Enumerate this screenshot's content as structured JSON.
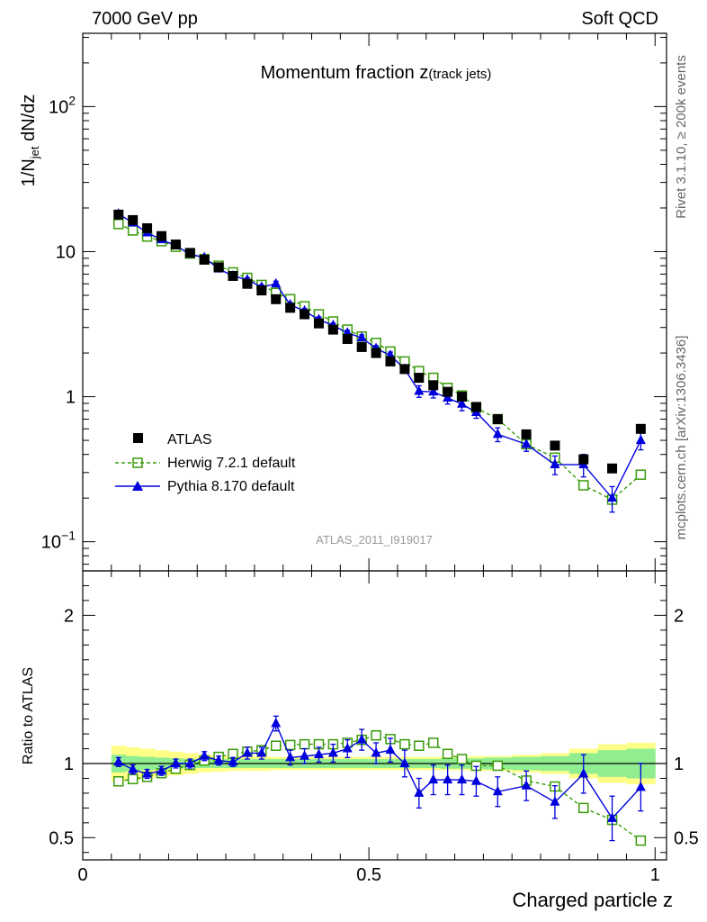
{
  "header": {
    "left": "7000 GeV pp",
    "right": "Soft QCD"
  },
  "side_labels": {
    "rivet": "Rivet 3.1.10, ≥ 200k events",
    "source": "mcplots.cern.ch [arXiv:1306.3436]"
  },
  "chart_data": [
    {
      "type": "scatter",
      "panel": "main",
      "title_main": "Momentum fraction z",
      "title_sub": "(track jets)",
      "ylabel": "1/N_jet dN/dz",
      "xlabel": "",
      "analysis_label": "ATLAS_2011_I919017",
      "yscale": "log",
      "xlim": [
        0,
        1.02
      ],
      "ylim": [
        0.063,
        320
      ],
      "y_ticks": [
        {
          "value": 0.1,
          "base": "10",
          "exp": "−1"
        },
        {
          "value": 1,
          "base": "1",
          "exp": ""
        },
        {
          "value": 10,
          "base": "10",
          "exp": ""
        },
        {
          "value": 100,
          "base": "10",
          "exp": "2"
        }
      ],
      "legend": [
        {
          "key": "atlas",
          "label": "ATLAS"
        },
        {
          "key": "herwig",
          "label": "Herwig 7.2.1 default"
        },
        {
          "key": "pythia",
          "label": "Pythia 8.170 default"
        }
      ],
      "x": [
        0.0625,
        0.0875,
        0.1125,
        0.1375,
        0.1625,
        0.1875,
        0.2125,
        0.2375,
        0.2625,
        0.2875,
        0.3125,
        0.3375,
        0.3625,
        0.3875,
        0.4125,
        0.4375,
        0.4625,
        0.4875,
        0.5125,
        0.5375,
        0.5625,
        0.5875,
        0.6125,
        0.6375,
        0.6625,
        0.6875,
        0.725,
        0.775,
        0.825,
        0.875,
        0.925,
        0.975
      ],
      "series": [
        {
          "key": "atlas",
          "name": "ATLAS",
          "color": "#000000",
          "values": [
            18,
            16.5,
            14.5,
            12.8,
            11.2,
            9.8,
            8.8,
            7.8,
            6.8,
            6.0,
            5.4,
            4.7,
            4.1,
            3.7,
            3.2,
            2.9,
            2.5,
            2.2,
            2.0,
            1.75,
            1.55,
            1.35,
            1.2,
            1.08,
            1.0,
            0.85,
            0.7,
            0.55,
            0.46,
            0.37,
            0.32,
            0.6
          ]
        },
        {
          "key": "herwig",
          "name": "Herwig 7.2.1 default",
          "color": "#3a9b0a",
          "values": [
            15.5,
            14.0,
            12.7,
            11.8,
            10.8,
            9.7,
            8.9,
            8.0,
            7.2,
            6.6,
            5.9,
            5.2,
            4.7,
            4.2,
            3.7,
            3.3,
            2.9,
            2.6,
            2.35,
            2.05,
            1.75,
            1.5,
            1.35,
            1.15,
            1.02,
            0.84,
            0.7,
            0.47,
            0.38,
            0.245,
            0.195,
            0.29
          ]
        },
        {
          "key": "pythia",
          "name": "Pythia 8.170 default",
          "color": "#0000dd",
          "values": [
            18.2,
            15.8,
            13.5,
            12.1,
            11.0,
            9.6,
            9.1,
            7.6,
            6.8,
            6.4,
            5.7,
            6.0,
            4.3,
            3.9,
            3.4,
            3.1,
            2.75,
            2.55,
            2.15,
            1.93,
            1.55,
            1.09,
            1.08,
            0.98,
            0.89,
            0.78,
            0.55,
            0.47,
            0.34,
            0.34,
            0.2,
            0.5
          ],
          "err": [
            0.6,
            0.5,
            0.4,
            0.4,
            0.3,
            0.3,
            0.3,
            0.25,
            0.2,
            0.2,
            0.2,
            0.25,
            0.15,
            0.15,
            0.15,
            0.12,
            0.12,
            0.12,
            0.1,
            0.1,
            0.09,
            0.1,
            0.1,
            0.09,
            0.09,
            0.07,
            0.06,
            0.05,
            0.05,
            0.06,
            0.04,
            0.07
          ]
        }
      ]
    },
    {
      "type": "scatter",
      "panel": "ratio",
      "ylabel": "Ratio to ATLAS",
      "xlabel": "Charged particle z",
      "yscale": "linear",
      "xlim": [
        0,
        1.02
      ],
      "ylim": [
        0.35,
        2.3
      ],
      "y_ticks": [
        0.5,
        1,
        2
      ],
      "x_ticks": [
        {
          "value": 0,
          "label": "0"
        },
        {
          "value": 0.5,
          "label": "0.5"
        },
        {
          "value": 1,
          "label": "1"
        }
      ],
      "reference_line": 1,
      "x": [
        0.0625,
        0.0875,
        0.1125,
        0.1375,
        0.1625,
        0.1875,
        0.2125,
        0.2375,
        0.2625,
        0.2875,
        0.3125,
        0.3375,
        0.3625,
        0.3875,
        0.4125,
        0.4375,
        0.4625,
        0.4875,
        0.5125,
        0.5375,
        0.5625,
        0.5875,
        0.6125,
        0.6375,
        0.6625,
        0.6875,
        0.725,
        0.775,
        0.825,
        0.875,
        0.925,
        0.975
      ],
      "bin_edges": [
        0.05,
        0.075,
        0.1,
        0.125,
        0.15,
        0.175,
        0.2,
        0.225,
        0.25,
        0.275,
        0.3,
        0.325,
        0.35,
        0.375,
        0.4,
        0.425,
        0.45,
        0.475,
        0.5,
        0.525,
        0.55,
        0.575,
        0.6,
        0.625,
        0.65,
        0.675,
        0.7,
        0.75,
        0.8,
        0.85,
        0.9,
        0.95,
        1.0
      ],
      "bands": {
        "stat_color": "#90ee90",
        "total_color": "#ffff88",
        "stat_halfwidth": [
          0.06,
          0.05,
          0.045,
          0.04,
          0.035,
          0.03,
          0.03,
          0.03,
          0.03,
          0.03,
          0.03,
          0.03,
          0.03,
          0.03,
          0.03,
          0.03,
          0.03,
          0.03,
          0.03,
          0.03,
          0.03,
          0.03,
          0.03,
          0.035,
          0.035,
          0.035,
          0.04,
          0.045,
          0.05,
          0.07,
          0.09,
          0.1
        ],
        "total_halfwidth": [
          0.12,
          0.11,
          0.1,
          0.09,
          0.08,
          0.07,
          0.06,
          0.055,
          0.05,
          0.05,
          0.05,
          0.045,
          0.045,
          0.045,
          0.045,
          0.045,
          0.045,
          0.045,
          0.045,
          0.045,
          0.045,
          0.045,
          0.045,
          0.045,
          0.045,
          0.05,
          0.05,
          0.06,
          0.07,
          0.1,
          0.13,
          0.14
        ]
      },
      "series": [
        {
          "key": "herwig",
          "name": "Herwig 7.2.1 default",
          "color": "#3a9b0a",
          "values": [
            0.88,
            0.895,
            0.91,
            0.935,
            0.965,
            0.99,
            1.02,
            1.045,
            1.065,
            1.08,
            1.09,
            1.12,
            1.125,
            1.13,
            1.13,
            1.13,
            1.14,
            1.16,
            1.19,
            1.165,
            1.13,
            1.12,
            1.14,
            1.065,
            1.03,
            0.985,
            0.985,
            0.885,
            0.845,
            0.7,
            0.62,
            0.48
          ]
        },
        {
          "key": "pythia",
          "name": "Pythia 8.170 default",
          "color": "#0000dd",
          "values": [
            1.01,
            0.96,
            0.93,
            0.95,
            1.0,
            1.0,
            1.05,
            1.02,
            1.01,
            1.07,
            1.07,
            1.27,
            1.04,
            1.05,
            1.06,
            1.07,
            1.1,
            1.16,
            1.07,
            1.09,
            1.0,
            0.8,
            0.89,
            0.89,
            0.89,
            0.88,
            0.81,
            0.85,
            0.74,
            0.93,
            0.63,
            0.84
          ],
          "err": [
            0.03,
            0.03,
            0.03,
            0.03,
            0.03,
            0.03,
            0.03,
            0.03,
            0.03,
            0.04,
            0.04,
            0.05,
            0.05,
            0.05,
            0.05,
            0.06,
            0.06,
            0.07,
            0.07,
            0.08,
            0.09,
            0.1,
            0.1,
            0.1,
            0.1,
            0.1,
            0.1,
            0.1,
            0.11,
            0.13,
            0.15,
            0.16
          ]
        }
      ]
    }
  ]
}
